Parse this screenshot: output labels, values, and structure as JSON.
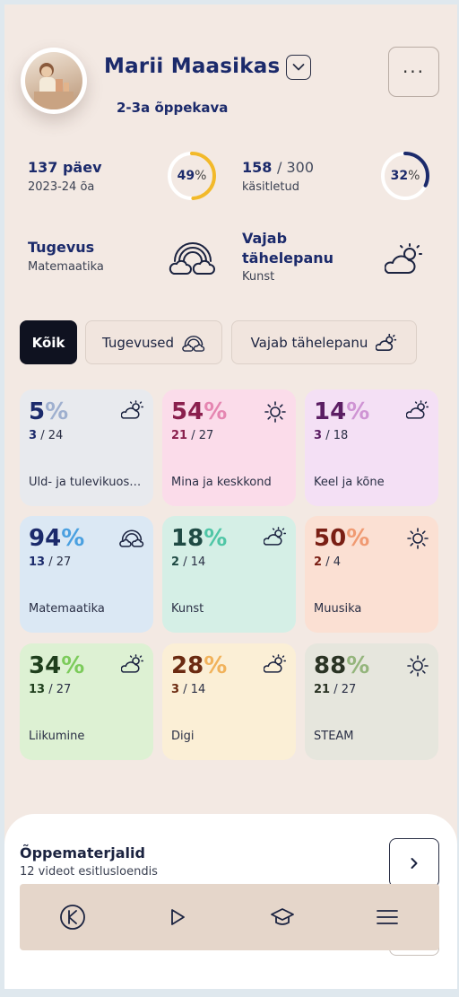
{
  "profile": {
    "name": "Marii Maasikas",
    "curriculum": "2-3a õppekava"
  },
  "header": {
    "more_label": "···"
  },
  "stats": {
    "days": {
      "value": "137 päev",
      "sub": "2023-24 õa",
      "percent": 49,
      "percent_text": "49",
      "percent_sign": "%",
      "color": "#f2b92a"
    },
    "handled": {
      "value": "158",
      "sep": "/ 300",
      "sub": "käsitletud",
      "percent": 32,
      "percent_text": "32",
      "percent_sign": "%",
      "color": "#f2b92a",
      "dark_color": "#1b2a6b"
    }
  },
  "strength": {
    "title": "Tugevus",
    "sub": "Matemaatika",
    "icon": "rainbow-cloud-icon"
  },
  "attention": {
    "title_line1": "Vajab",
    "title_line2": "tähelepanu",
    "sub": "Kunst",
    "icon": "sun-cloud-icon"
  },
  "filters": [
    {
      "label": "Kõik",
      "active": true
    },
    {
      "label": "Tugevused",
      "icon": "rainbow-cloud-icon"
    },
    {
      "label": "Vajab tähelepanu",
      "icon": "sun-cloud-icon"
    }
  ],
  "subjects": [
    {
      "pct": "5",
      "done": "3",
      "total": "/ 24",
      "label": "Üld- ja tulevikuoskused",
      "bg": "#e8eaee",
      "num": "#1b2a6b",
      "sign": "#9fb0cf",
      "icon": "sun-cloud-icon"
    },
    {
      "pct": "54",
      "done": "21",
      "total": "/ 27",
      "label": "Mina ja keskkond",
      "bg": "#fbdcea",
      "num": "#8a1f4d",
      "sign": "#e586b1",
      "icon": "sun-icon"
    },
    {
      "pct": "14",
      "done": "3",
      "total": "/ 18",
      "label": "Keel ja kõne",
      "bg": "#f4e0f5",
      "num": "#5b1e63",
      "sign": "#cf94d4",
      "icon": "sun-cloud-icon"
    },
    {
      "pct": "94",
      "done": "13",
      "total": "/ 27",
      "label": "Matemaatika",
      "bg": "#dbe8f4",
      "num": "#1b2a6b",
      "sign": "#4aa0e0",
      "icon": "rainbow-cloud-icon"
    },
    {
      "pct": "18",
      "done": "2",
      "total": "/ 14",
      "label": "Kunst",
      "bg": "#d5efe6",
      "num": "#1f4a44",
      "sign": "#4fc6a6",
      "icon": "sun-cloud-icon"
    },
    {
      "pct": "50",
      "done": "2",
      "total": "/ 4",
      "label": "Muusika",
      "bg": "#fbe0d3",
      "num": "#7a1f14",
      "sign": "#f09a72",
      "icon": "sun-icon"
    },
    {
      "pct": "34",
      "done": "13",
      "total": "/ 27",
      "label": "Liikumine",
      "bg": "#ddf1d3",
      "num": "#1f3f1d",
      "sign": "#7ccb5b",
      "icon": "sun-cloud-icon"
    },
    {
      "pct": "28",
      "done": "3",
      "total": "/ 14",
      "label": "Digi",
      "bg": "#fbefd6",
      "num": "#6b2a11",
      "sign": "#f1b25b",
      "icon": "sun-cloud-icon"
    },
    {
      "pct": "88",
      "done": "21",
      "total": "/ 27",
      "label": "STEAM",
      "bg": "#e6e6dd",
      "num": "#2a3324",
      "sign": "#94b57c",
      "icon": "sun-icon"
    }
  ],
  "pct_sign": "%",
  "materials": {
    "title": "Õppemater­jalid",
    "sub": "12 videot esitlusloendis"
  },
  "nav": [
    {
      "icon": "k-logo-icon"
    },
    {
      "icon": "play-icon"
    },
    {
      "icon": "graduation-cap-icon"
    },
    {
      "icon": "menu-icon"
    }
  ]
}
